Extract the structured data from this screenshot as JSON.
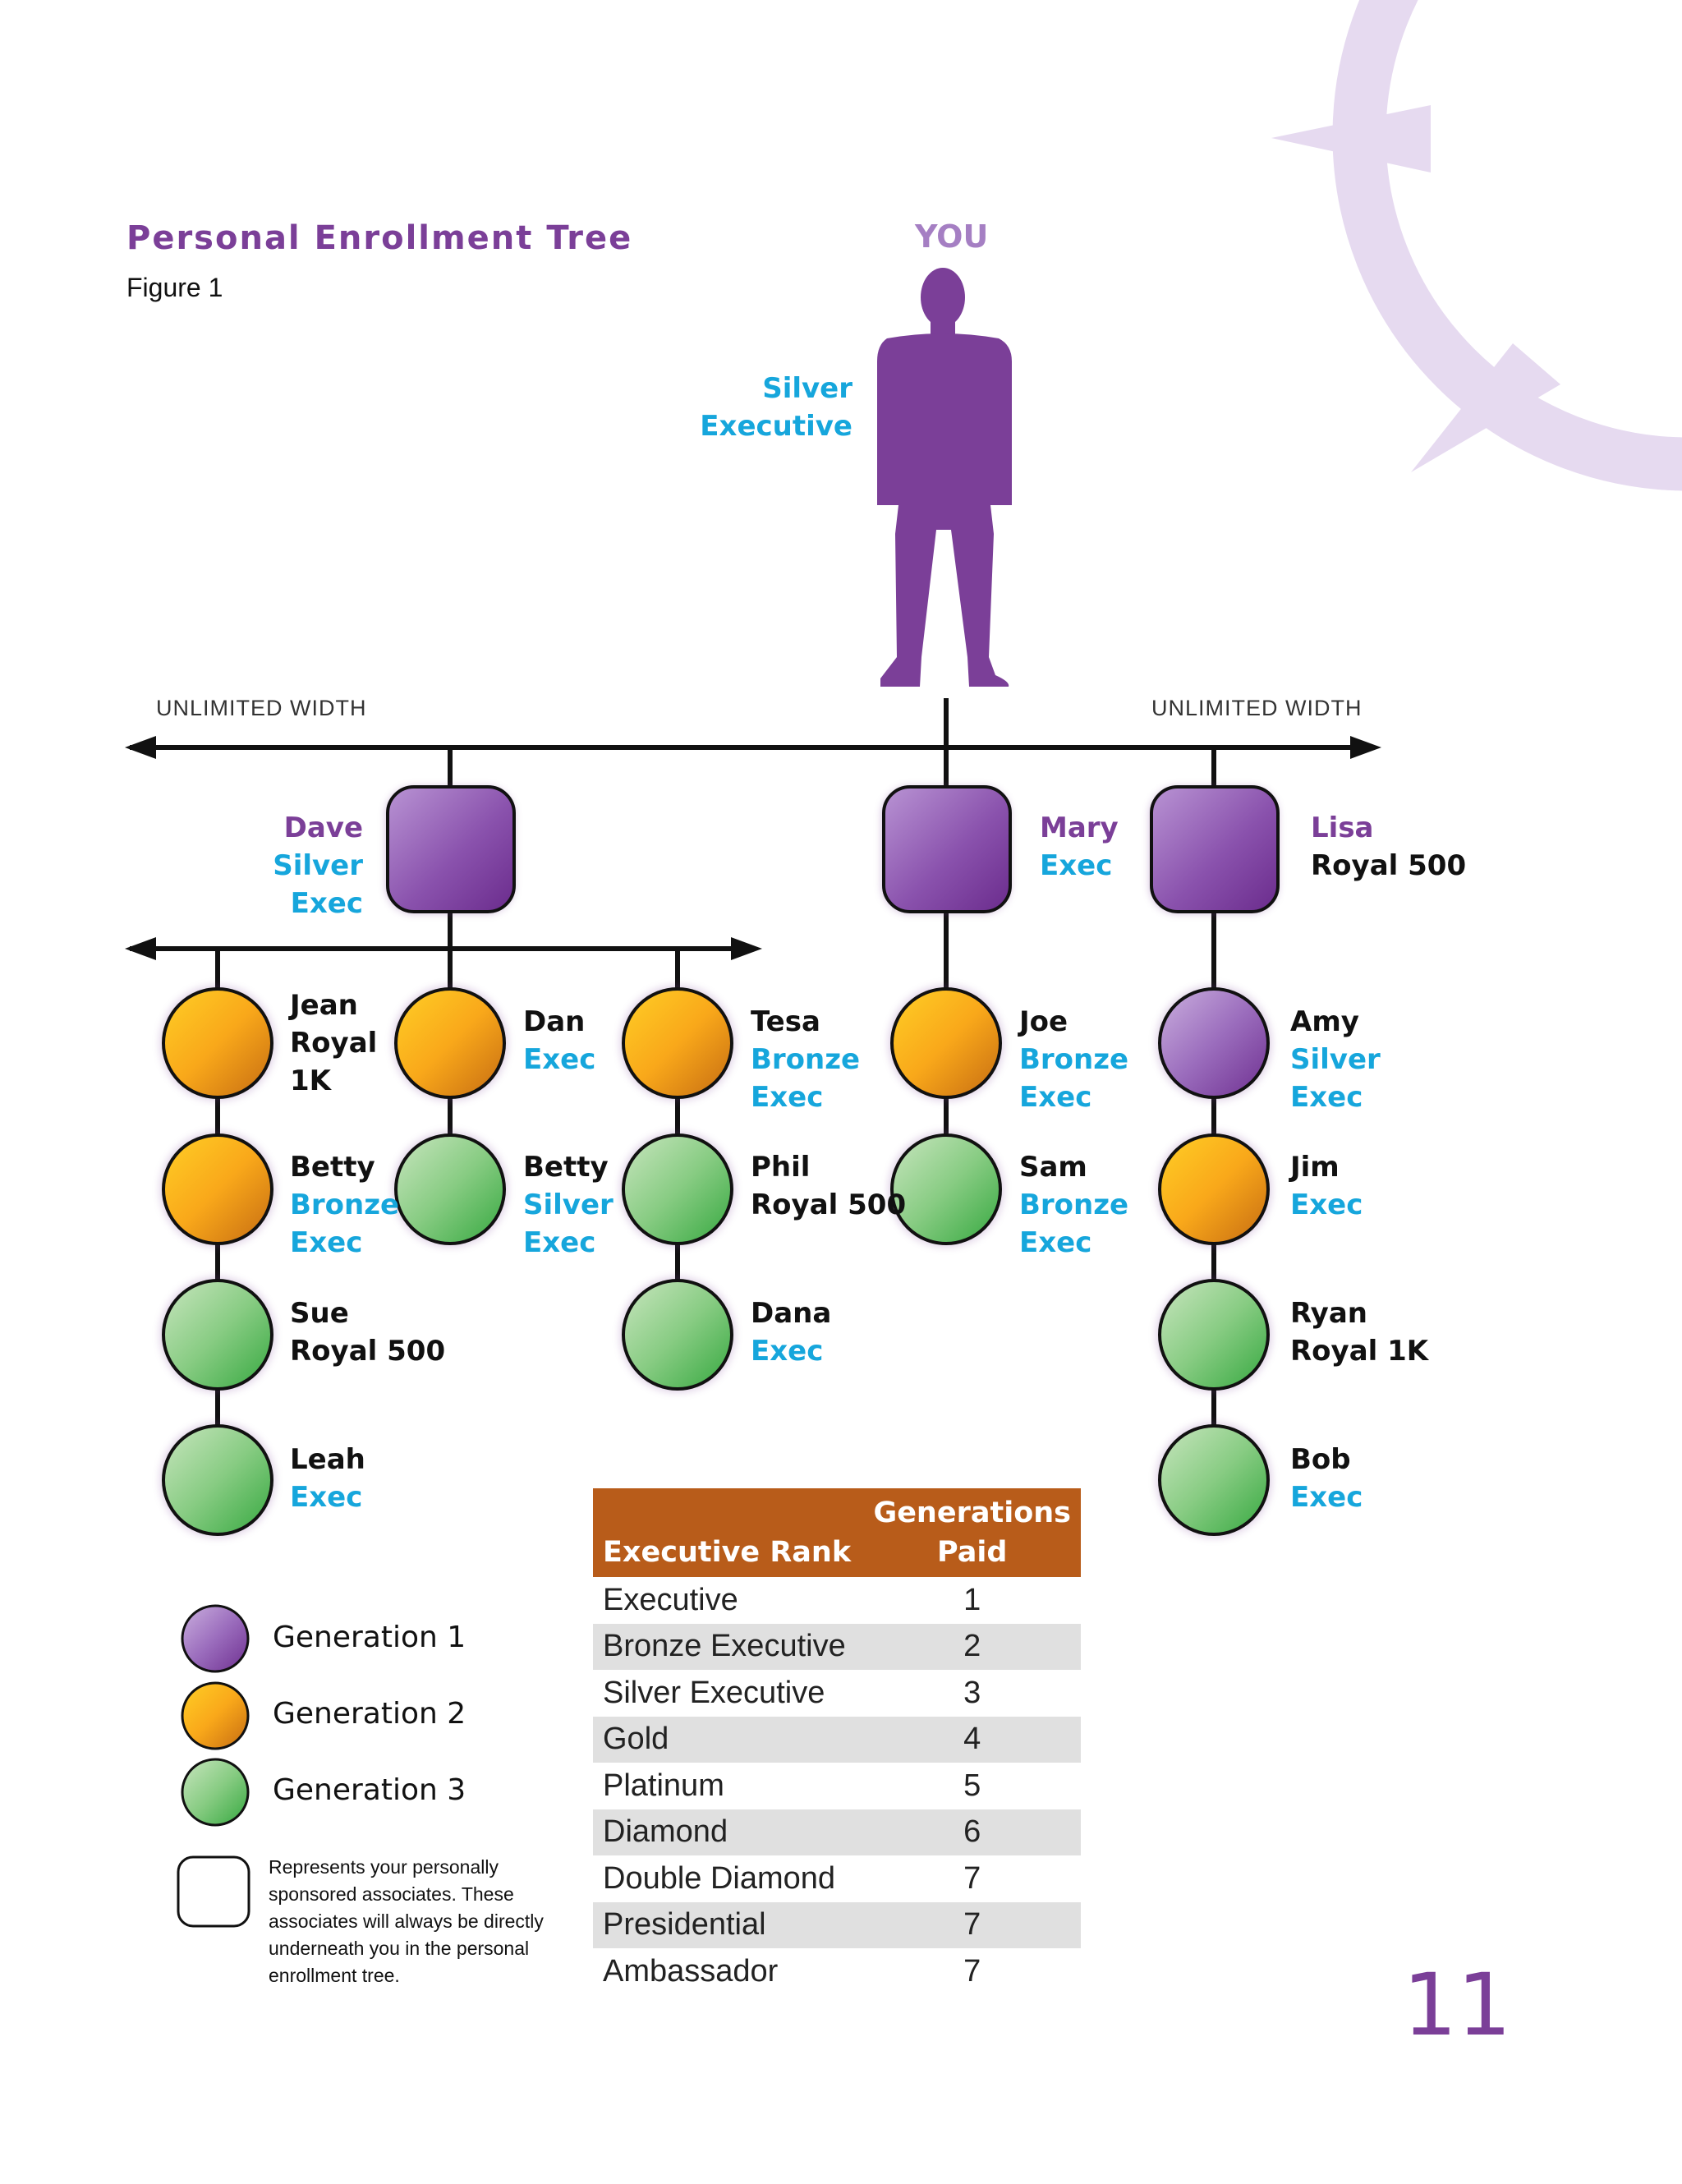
{
  "header": {
    "title": "Personal Enrollment Tree",
    "figure": "Figure 1"
  },
  "you": {
    "label": "YOU",
    "rank_line1": "Silver",
    "rank_line2": "Executive"
  },
  "width_labels": {
    "left": "UNLIMITED WIDTH",
    "right": "UNLIMITED WIDTH"
  },
  "colors": {
    "generation1": "#9b62b8",
    "generation2": "#f5a623",
    "generation3": "#6cc16a",
    "brand_purple": "#7b3f98",
    "rank_blue": "#16a6dc",
    "table_header": "#b85c1a"
  },
  "sponsors": [
    {
      "name": "Dave",
      "rank_line1": "Silver",
      "rank_line2": "Exec"
    },
    {
      "name": "Mary",
      "rank_line1": "Exec"
    },
    {
      "name": "Lisa",
      "rank_line1": "Royal 500"
    }
  ],
  "members": {
    "jean": {
      "line1": "Jean",
      "line2": "Royal",
      "line3": "1K"
    },
    "betty1": {
      "line1": "Betty",
      "line2": "Bronze",
      "line3": "Exec"
    },
    "sue": {
      "line1": "Sue",
      "line2": "Royal 500"
    },
    "leah": {
      "line1": "Leah",
      "line2": "Exec"
    },
    "dan": {
      "line1": "Dan",
      "line2": "Exec"
    },
    "betty2": {
      "line1": "Betty",
      "line2": "Silver",
      "line3": "Exec"
    },
    "tesa": {
      "line1": "Tesa",
      "line2": "Bronze",
      "line3": "Exec"
    },
    "phil": {
      "line1": "Phil",
      "line2": "Royal 500"
    },
    "dana": {
      "line1": "Dana",
      "line2": "Exec"
    },
    "joe": {
      "line1": "Joe",
      "line2": "Bronze",
      "line3": "Exec"
    },
    "sam": {
      "line1": "Sam",
      "line2": "Bronze",
      "line3": "Exec"
    },
    "amy": {
      "line1": "Amy",
      "line2": "Silver",
      "line3": "Exec"
    },
    "jim": {
      "line1": "Jim",
      "line2": "Exec"
    },
    "ryan": {
      "line1": "Ryan",
      "line2": "Royal 1K"
    },
    "bob": {
      "line1": "Bob",
      "line2": "Exec"
    }
  },
  "legend": {
    "gen1": "Generation 1",
    "gen2": "Generation 2",
    "gen3": "Generation 3",
    "sponsored_note": "Represents your personally sponsored associates. These associates will always be directly underneath you in the personal enrollment tree."
  },
  "table": {
    "col1": "Executive Rank",
    "col2_line1": "Generations",
    "col2_line2": "Paid",
    "rows": [
      {
        "rank": "Executive",
        "gens": "1"
      },
      {
        "rank": "Bronze Executive",
        "gens": "2"
      },
      {
        "rank": "Silver Executive",
        "gens": "3"
      },
      {
        "rank": "Gold",
        "gens": "4"
      },
      {
        "rank": "Platinum",
        "gens": "5"
      },
      {
        "rank": "Diamond",
        "gens": "6"
      },
      {
        "rank": "Double Diamond",
        "gens": "7"
      },
      {
        "rank": "Presidential",
        "gens": "7"
      },
      {
        "rank": "Ambassador",
        "gens": "7"
      }
    ]
  },
  "page_number": "11"
}
